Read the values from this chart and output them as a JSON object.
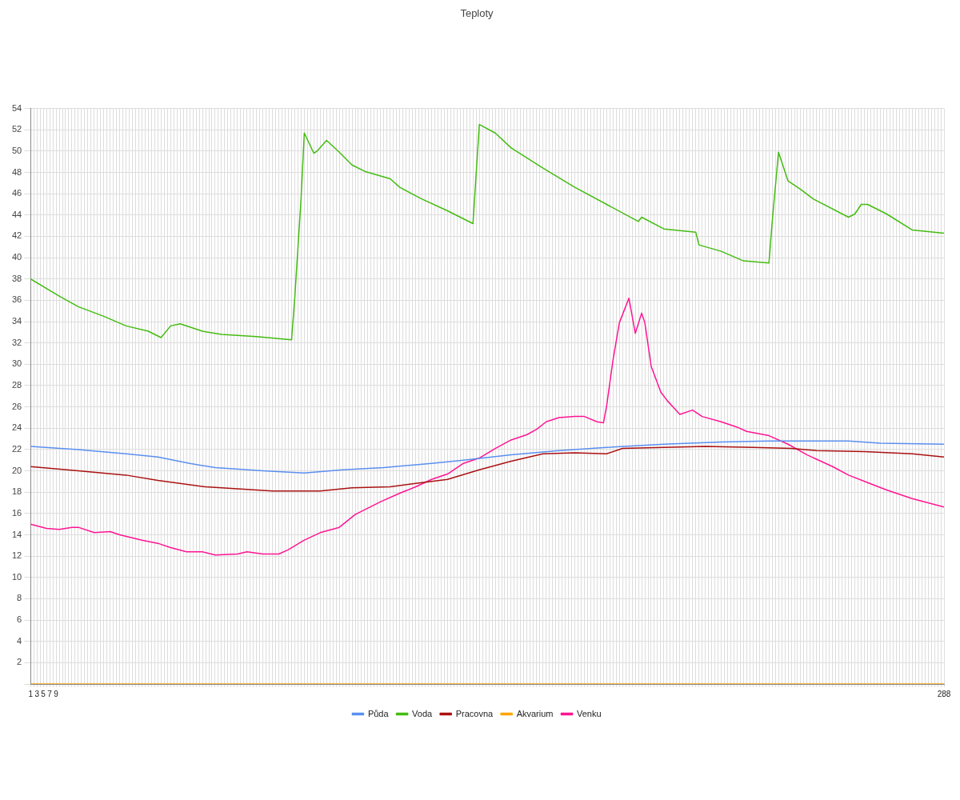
{
  "chart_data": {
    "type": "line",
    "title": "Teploty",
    "xlim": [
      1,
      288
    ],
    "xticks": [
      1,
      {
        "value": 2,
        "label": null
      },
      3,
      {
        "value": 4,
        "label": null
      },
      5,
      {
        "value": 6,
        "label": null
      },
      7,
      {
        "value": 8,
        "label": null
      },
      9,
      {
        "value": 10,
        "label": null
      },
      {
        "value": 11,
        "label": null
      },
      {
        "value": 12,
        "label": null
      },
      {
        "value": 13,
        "label": null
      },
      {
        "value": 14,
        "label": null
      },
      {
        "value": 15,
        "label": null
      },
      {
        "value": 16,
        "label": null
      },
      {
        "value": 17,
        "label": null
      },
      {
        "value": 18,
        "label": null
      },
      {
        "value": 19,
        "label": null
      },
      {
        "value": 20,
        "label": null
      },
      {
        "value": 21,
        "label": null
      },
      {
        "value": 22,
        "label": null
      },
      {
        "value": 23,
        "label": null
      },
      {
        "value": 24,
        "label": null
      },
      {
        "value": 25,
        "label": null
      },
      {
        "value": 26,
        "label": null
      },
      {
        "value": 27,
        "label": null
      },
      {
        "value": 28,
        "label": null
      },
      {
        "value": 29,
        "label": null
      },
      {
        "value": 30,
        "label": null
      },
      {
        "value": 31,
        "label": null
      },
      {
        "value": 32,
        "label": null
      },
      {
        "value": 33,
        "label": null
      },
      {
        "value": 34,
        "label": null
      },
      {
        "value": 35,
        "label": null
      },
      {
        "value": 36,
        "label": null
      },
      {
        "value": 37,
        "label": null
      },
      {
        "value": 38,
        "label": null
      },
      {
        "value": 39,
        "label": null
      },
      {
        "value": 40,
        "label": null
      },
      {
        "value": 41,
        "label": null
      },
      {
        "value": 42,
        "label": null
      },
      {
        "value": 43,
        "label": null
      },
      {
        "value": 44,
        "label": null
      },
      {
        "value": 45,
        "label": null
      },
      {
        "value": 46,
        "label": null
      },
      {
        "value": 47,
        "label": null
      },
      {
        "value": 48,
        "label": null
      },
      {
        "value": 49,
        "label": null
      },
      {
        "value": 50,
        "label": null
      },
      {
        "value": 51,
        "label": null
      },
      {
        "value": 52,
        "label": null
      },
      {
        "value": 53,
        "label": null
      },
      {
        "value": 54,
        "label": null
      },
      {
        "value": 55,
        "label": null
      },
      {
        "value": 56,
        "label": null
      },
      {
        "value": 57,
        "label": null
      },
      {
        "value": 58,
        "label": null
      },
      {
        "value": 59,
        "label": null
      },
      {
        "value": 60,
        "label": null
      },
      {
        "value": 61,
        "label": null
      },
      {
        "value": 62,
        "label": null
      },
      {
        "value": 63,
        "label": null
      },
      {
        "value": 64,
        "label": null
      },
      {
        "value": 65,
        "label": null
      },
      {
        "value": 66,
        "label": null
      },
      {
        "value": 67,
        "label": null
      },
      {
        "value": 68,
        "label": null
      },
      {
        "value": 69,
        "label": null
      },
      {
        "value": 70,
        "label": null
      },
      {
        "value": 71,
        "label": null
      },
      {
        "value": 72,
        "label": null
      },
      {
        "value": 73,
        "label": null
      },
      {
        "value": 74,
        "label": null
      },
      {
        "value": 75,
        "label": null
      },
      {
        "value": 76,
        "label": null
      },
      {
        "value": 77,
        "label": null
      },
      {
        "value": 78,
        "label": null
      },
      {
        "value": 79,
        "label": null
      },
      {
        "value": 80,
        "label": null
      },
      {
        "value": 81,
        "label": null
      },
      {
        "value": 82,
        "label": null
      },
      {
        "value": 83,
        "label": null
      },
      {
        "value": 84,
        "label": null
      },
      {
        "value": 85,
        "label": null
      },
      {
        "value": 86,
        "label": null
      },
      {
        "value": 87,
        "label": null
      },
      {
        "value": 88,
        "label": null
      },
      {
        "value": 89,
        "label": null
      },
      {
        "value": 90,
        "label": null
      },
      {
        "value": 91,
        "label": null
      },
      {
        "value": 92,
        "label": null
      },
      {
        "value": 93,
        "label": null
      },
      {
        "value": 94,
        "label": null
      },
      {
        "value": 95,
        "label": null
      },
      {
        "value": 96,
        "label": null
      },
      {
        "value": 97,
        "label": null
      },
      {
        "value": 98,
        "label": null
      },
      {
        "value": 99,
        "label": null
      },
      {
        "value": 100,
        "label": null
      },
      {
        "value": 101,
        "label": null
      },
      {
        "value": 102,
        "label": null
      },
      {
        "value": 103,
        "label": null
      },
      {
        "value": 104,
        "label": null
      },
      {
        "value": 105,
        "label": null
      },
      {
        "value": 106,
        "label": null
      },
      {
        "value": 107,
        "label": null
      },
      {
        "value": 108,
        "label": null
      },
      {
        "value": 109,
        "label": null
      },
      {
        "value": 110,
        "label": null
      },
      {
        "value": 111,
        "label": null
      },
      {
        "value": 112,
        "label": null
      },
      {
        "value": 113,
        "label": null
      },
      {
        "value": 114,
        "label": null
      },
      {
        "value": 115,
        "label": null
      },
      {
        "value": 116,
        "label": null
      },
      {
        "value": 117,
        "label": null
      },
      {
        "value": 118,
        "label": null
      },
      {
        "value": 119,
        "label": null
      },
      {
        "value": 120,
        "label": null
      },
      {
        "value": 121,
        "label": null
      },
      {
        "value": 122,
        "label": null
      },
      {
        "value": 123,
        "label": null
      },
      {
        "value": 124,
        "label": null
      },
      {
        "value": 125,
        "label": null
      },
      {
        "value": 126,
        "label": null
      },
      {
        "value": 127,
        "label": null
      },
      {
        "value": 128,
        "label": null
      },
      {
        "value": 129,
        "label": null
      },
      {
        "value": 130,
        "label": null
      },
      {
        "value": 131,
        "label": null
      },
      {
        "value": 132,
        "label": null
      },
      {
        "value": 133,
        "label": null
      },
      {
        "value": 134,
        "label": null
      },
      {
        "value": 135,
        "label": null
      },
      {
        "value": 136,
        "label": null
      },
      {
        "value": 137,
        "label": null
      },
      {
        "value": 138,
        "label": null
      },
      {
        "value": 139,
        "label": null
      },
      {
        "value": 140,
        "label": null
      },
      {
        "value": 141,
        "label": null
      },
      {
        "value": 142,
        "label": null
      },
      {
        "value": 143,
        "label": null
      },
      {
        "value": 144,
        "label": null
      },
      {
        "value": 145,
        "label": null
      },
      {
        "value": 146,
        "label": null
      },
      {
        "value": 147,
        "label": null
      },
      {
        "value": 148,
        "label": null
      },
      {
        "value": 149,
        "label": null
      },
      {
        "value": 150,
        "label": null
      },
      {
        "value": 151,
        "label": null
      },
      {
        "value": 152,
        "label": null
      },
      {
        "value": 153,
        "label": null
      },
      {
        "value": 154,
        "label": null
      },
      {
        "value": 155,
        "label": null
      },
      {
        "value": 156,
        "label": null
      },
      {
        "value": 157,
        "label": null
      },
      {
        "value": 158,
        "label": null
      },
      {
        "value": 159,
        "label": null
      },
      {
        "value": 160,
        "label": null
      },
      {
        "value": 161,
        "label": null
      },
      {
        "value": 162,
        "label": null
      },
      {
        "value": 163,
        "label": null
      },
      {
        "value": 164,
        "label": null
      },
      {
        "value": 165,
        "label": null
      },
      {
        "value": 166,
        "label": null
      },
      {
        "value": 167,
        "label": null
      },
      {
        "value": 168,
        "label": null
      },
      {
        "value": 169,
        "label": null
      },
      {
        "value": 170,
        "label": null
      },
      {
        "value": 171,
        "label": null
      },
      {
        "value": 172,
        "label": null
      },
      {
        "value": 173,
        "label": null
      },
      {
        "value": 174,
        "label": null
      },
      {
        "value": 175,
        "label": null
      },
      {
        "value": 176,
        "label": null
      },
      {
        "value": 177,
        "label": null
      },
      {
        "value": 178,
        "label": null
      },
      {
        "value": 179,
        "label": null
      },
      {
        "value": 180,
        "label": null
      },
      {
        "value": 181,
        "label": null
      },
      {
        "value": 182,
        "label": null
      },
      {
        "value": 183,
        "label": null
      },
      {
        "value": 184,
        "label": null
      },
      {
        "value": 185,
        "label": null
      },
      {
        "value": 186,
        "label": null
      },
      {
        "value": 187,
        "label": null
      },
      {
        "value": 188,
        "label": null
      },
      {
        "value": 189,
        "label": null
      },
      {
        "value": 190,
        "label": null
      },
      {
        "value": 191,
        "label": null
      },
      {
        "value": 192,
        "label": null
      },
      {
        "value": 193,
        "label": null
      },
      {
        "value": 194,
        "label": null
      },
      {
        "value": 195,
        "label": null
      },
      {
        "value": 196,
        "label": null
      },
      {
        "value": 197,
        "label": null
      },
      {
        "value": 198,
        "label": null
      },
      {
        "value": 199,
        "label": null
      },
      {
        "value": 200,
        "label": null
      },
      {
        "value": 201,
        "label": null
      },
      {
        "value": 202,
        "label": null
      },
      {
        "value": 203,
        "label": null
      },
      {
        "value": 204,
        "label": null
      },
      {
        "value": 205,
        "label": null
      },
      {
        "value": 206,
        "label": null
      },
      {
        "value": 207,
        "label": null
      },
      {
        "value": 208,
        "label": null
      },
      {
        "value": 209,
        "label": null
      },
      {
        "value": 210,
        "label": null
      },
      {
        "value": 211,
        "label": null
      },
      {
        "value": 212,
        "label": null
      },
      {
        "value": 213,
        "label": null
      },
      {
        "value": 214,
        "label": null
      },
      {
        "value": 215,
        "label": null
      },
      {
        "value": 216,
        "label": null
      },
      {
        "value": 217,
        "label": null
      },
      {
        "value": 218,
        "label": null
      },
      {
        "value": 219,
        "label": null
      },
      {
        "value": 220,
        "label": null
      },
      {
        "value": 221,
        "label": null
      },
      {
        "value": 222,
        "label": null
      },
      {
        "value": 223,
        "label": null
      },
      {
        "value": 224,
        "label": null
      },
      {
        "value": 225,
        "label": null
      },
      {
        "value": 226,
        "label": null
      },
      {
        "value": 227,
        "label": null
      },
      {
        "value": 228,
        "label": null
      },
      {
        "value": 229,
        "label": null
      },
      {
        "value": 230,
        "label": null
      },
      {
        "value": 231,
        "label": null
      },
      {
        "value": 232,
        "label": null
      },
      {
        "value": 233,
        "label": null
      },
      {
        "value": 234,
        "label": null
      },
      {
        "value": 235,
        "label": null
      },
      {
        "value": 236,
        "label": null
      },
      {
        "value": 237,
        "label": null
      },
      {
        "value": 238,
        "label": null
      },
      {
        "value": 239,
        "label": null
      },
      {
        "value": 240,
        "label": null
      },
      {
        "value": 241,
        "label": null
      },
      {
        "value": 242,
        "label": null
      },
      {
        "value": 243,
        "label": null
      },
      {
        "value": 244,
        "label": null
      },
      {
        "value": 245,
        "label": null
      },
      {
        "value": 246,
        "label": null
      },
      {
        "value": 247,
        "label": null
      },
      {
        "value": 248,
        "label": null
      },
      {
        "value": 249,
        "label": null
      },
      {
        "value": 250,
        "label": null
      },
      {
        "value": 251,
        "label": null
      },
      {
        "value": 252,
        "label": null
      },
      {
        "value": 253,
        "label": null
      },
      {
        "value": 254,
        "label": null
      },
      {
        "value": 255,
        "label": null
      },
      {
        "value": 256,
        "label": null
      },
      {
        "value": 257,
        "label": null
      },
      {
        "value": 258,
        "label": null
      },
      {
        "value": 259,
        "label": null
      },
      {
        "value": 260,
        "label": null
      },
      {
        "value": 261,
        "label": null
      },
      {
        "value": 262,
        "label": null
      },
      {
        "value": 263,
        "label": null
      },
      {
        "value": 264,
        "label": null
      },
      {
        "value": 265,
        "label": null
      },
      {
        "value": 266,
        "label": null
      },
      {
        "value": 267,
        "label": null
      },
      {
        "value": 268,
        "label": null
      },
      {
        "value": 269,
        "label": null
      },
      {
        "value": 270,
        "label": null
      },
      {
        "value": 271,
        "label": null
      },
      {
        "value": 272,
        "label": null
      },
      {
        "value": 273,
        "label": null
      },
      {
        "value": 274,
        "label": null
      },
      {
        "value": 275,
        "label": null
      },
      {
        "value": 276,
        "label": null
      },
      {
        "value": 277,
        "label": null
      },
      {
        "value": 278,
        "label": null
      },
      {
        "value": 279,
        "label": null
      },
      {
        "value": 280,
        "label": null
      },
      {
        "value": 281,
        "label": null
      },
      {
        "value": 282,
        "label": null
      },
      {
        "value": 283,
        "label": null
      },
      {
        "value": 284,
        "label": null
      },
      {
        "value": 285,
        "label": null
      },
      {
        "value": 286,
        "label": null
      },
      {
        "value": 287,
        "label": null
      },
      288
    ],
    "ylim": [
      0,
      54
    ],
    "yticks": [
      {
        "value": 0,
        "label": null
      },
      2,
      4,
      6,
      8,
      10,
      12,
      14,
      16,
      18,
      20,
      22,
      24,
      26,
      28,
      30,
      32,
      34,
      36,
      38,
      40,
      42,
      44,
      46,
      48,
      50,
      52,
      54
    ],
    "grid": true,
    "legend": "bottom",
    "marker": "none",
    "series": [
      {
        "name": "Půda",
        "color": "#5b8ff0",
        "x": [
          1,
          16,
          31,
          41,
          51,
          59,
          74,
          87,
          99,
          112,
          127,
          137,
          152,
          167,
          182,
          200,
          218,
          233,
          248,
          258,
          268,
          288
        ],
        "values": [
          22.3,
          22.0,
          21.6,
          21.3,
          20.7,
          20.3,
          20.0,
          19.8,
          20.1,
          20.3,
          20.7,
          21.0,
          21.5,
          21.9,
          22.2,
          22.5,
          22.7,
          22.8,
          22.8,
          22.8,
          22.6,
          22.5
        ]
      },
      {
        "name": "Voda",
        "color": "#44bb11",
        "x": [
          1,
          10,
          16,
          24,
          31,
          38,
          42,
          45,
          48,
          55,
          61,
          72,
          83,
          84,
          86,
          87,
          90,
          91,
          94,
          98,
          102,
          106,
          114,
          117,
          124,
          132,
          138,
          140,
          142,
          147,
          152,
          162,
          172,
          182,
          192,
          193,
          200,
          210,
          211,
          218,
          225,
          233,
          234,
          236,
          239,
          243,
          247,
          258,
          260,
          262,
          264,
          270,
          278,
          288
        ],
        "values": [
          38.0,
          36.4,
          35.4,
          34.5,
          33.6,
          33.1,
          32.5,
          33.6,
          33.8,
          33.1,
          32.8,
          32.6,
          32.3,
          36.2,
          45.6,
          51.7,
          49.8,
          50.0,
          51.0,
          49.9,
          48.7,
          48.1,
          47.4,
          46.6,
          45.5,
          44.4,
          43.5,
          43.2,
          52.5,
          51.7,
          50.3,
          48.4,
          46.6,
          45.0,
          43.4,
          43.8,
          42.7,
          42.4,
          41.2,
          40.6,
          39.7,
          39.5,
          43.3,
          49.9,
          47.2,
          46.4,
          45.5,
          43.8,
          44.1,
          45.0,
          45.0,
          44.1,
          42.6,
          42.3
        ]
      },
      {
        "name": "Pracovna",
        "color": "#aa1111",
        "x": [
          1,
          16,
          31,
          41,
          56,
          72,
          77,
          92,
          102,
          114,
          124,
          132,
          142,
          152,
          162,
          172,
          182,
          187,
          200,
          213,
          228,
          240,
          248,
          263,
          278,
          288
        ],
        "values": [
          20.4,
          20.0,
          19.6,
          19.1,
          18.5,
          18.2,
          18.1,
          18.1,
          18.4,
          18.5,
          18.9,
          19.2,
          20.1,
          20.9,
          21.6,
          21.7,
          21.6,
          22.1,
          22.2,
          22.3,
          22.2,
          22.1,
          21.9,
          21.8,
          21.6,
          21.3
        ]
      },
      {
        "name": "Akvarium",
        "color": "#ffa500",
        "x": [
          1,
          288
        ],
        "values": [
          0,
          0
        ]
      },
      {
        "name": "Venku",
        "color": "#ff1493",
        "x": [
          1,
          6,
          10,
          14,
          16,
          21,
          26,
          29,
          36,
          41,
          45,
          50,
          55,
          59,
          66,
          69,
          74,
          79,
          82,
          87,
          92,
          98,
          103,
          107,
          111,
          117,
          122,
          127,
          132,
          137,
          142,
          147,
          152,
          157,
          160,
          163,
          167,
          172,
          175,
          179,
          181,
          182,
          184,
          186,
          189,
          191,
          193,
          194,
          196,
          199,
          201,
          205,
          209,
          212,
          218,
          223,
          226,
          233,
          239,
          245,
          253,
          258,
          264,
          270,
          278,
          288
        ],
        "values": [
          15.0,
          14.6,
          14.5,
          14.7,
          14.7,
          14.2,
          14.3,
          14.0,
          13.5,
          13.2,
          12.8,
          12.4,
          12.4,
          12.1,
          12.2,
          12.4,
          12.2,
          12.2,
          12.6,
          13.5,
          14.2,
          14.7,
          15.9,
          16.5,
          17.1,
          17.9,
          18.5,
          19.2,
          19.7,
          20.7,
          21.2,
          22.1,
          22.9,
          23.4,
          23.9,
          24.6,
          25.0,
          25.1,
          25.1,
          24.6,
          24.5,
          26.1,
          30.4,
          33.9,
          36.2,
          32.9,
          34.8,
          33.9,
          29.8,
          27.4,
          26.6,
          25.3,
          25.7,
          25.1,
          24.6,
          24.1,
          23.7,
          23.3,
          22.5,
          21.5,
          20.4,
          19.6,
          18.9,
          18.2,
          17.4,
          16.6
        ]
      }
    ]
  }
}
